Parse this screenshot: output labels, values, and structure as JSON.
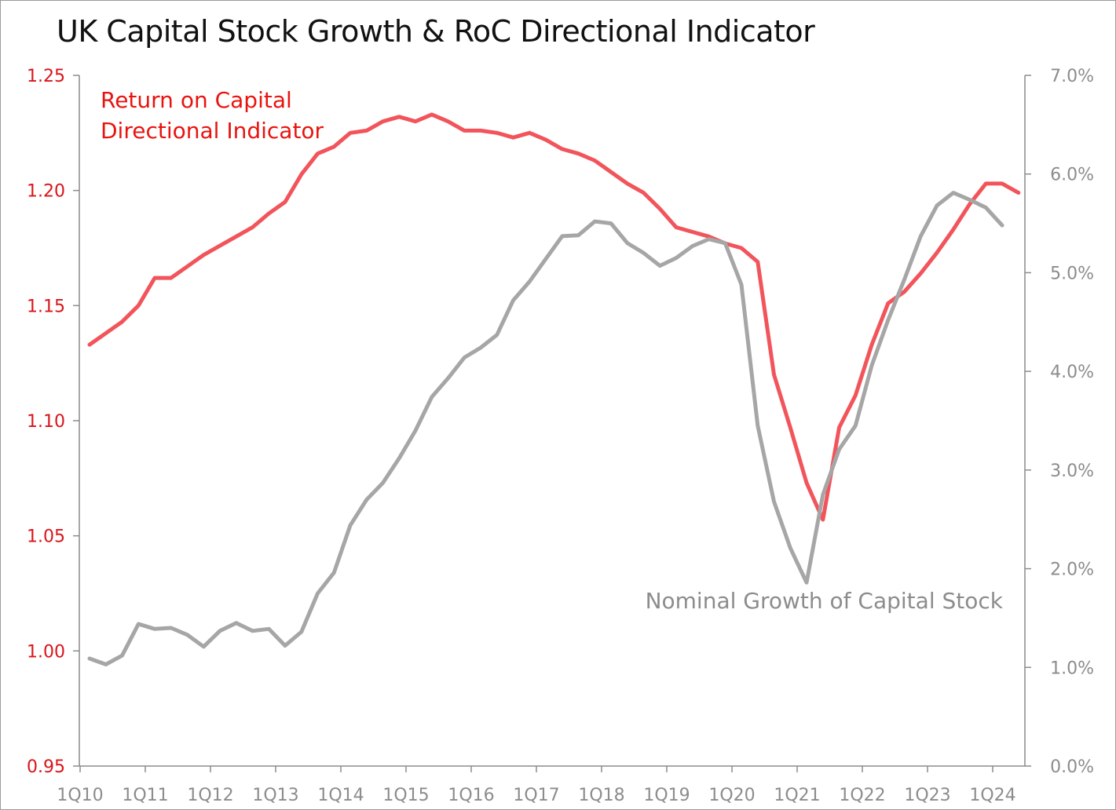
{
  "title": "UK Capital Stock Growth & RoC Directional Indicator",
  "chart_data": {
    "type": "line",
    "title": "UK Capital Stock Growth & RoC Directional Indicator",
    "x_ticks": [
      "1Q10",
      "1Q11",
      "1Q12",
      "1Q13",
      "1Q14",
      "1Q15",
      "1Q16",
      "1Q17",
      "1Q18",
      "1Q19",
      "1Q20",
      "1Q21",
      "1Q22",
      "1Q23",
      "1Q24"
    ],
    "x_start_year": 2010,
    "y_left": {
      "ylim": [
        0.95,
        1.25
      ],
      "ticks": [
        "0.95",
        "1.00",
        "1.05",
        "1.10",
        "1.15",
        "1.20",
        "1.25"
      ],
      "color": "#d9141a"
    },
    "y_right": {
      "ylim": [
        0.0,
        0.07
      ],
      "ticks": [
        "0.0%",
        "1.0%",
        "2.0%",
        "3.0%",
        "4.0%",
        "5.0%",
        "6.0%",
        "7.0%"
      ],
      "color": "#8c8c8c"
    },
    "series": [
      {
        "name": "Return on Capital Directional Indicator",
        "label_lines": [
          "Return on Capital",
          "Directional Indicator"
        ],
        "axis": "left",
        "color": "#f2545b",
        "values": [
          1.133,
          1.138,
          1.143,
          1.15,
          1.162,
          1.162,
          1.167,
          1.172,
          1.176,
          1.18,
          1.184,
          1.19,
          1.195,
          1.207,
          1.216,
          1.219,
          1.225,
          1.226,
          1.23,
          1.232,
          1.23,
          1.233,
          1.23,
          1.226,
          1.226,
          1.225,
          1.223,
          1.225,
          1.222,
          1.218,
          1.216,
          1.213,
          1.208,
          1.203,
          1.199,
          1.192,
          1.184,
          1.182,
          1.18,
          1.177,
          1.175,
          1.169,
          1.12,
          1.097,
          1.073,
          1.057,
          1.097,
          1.111,
          1.133,
          1.151,
          1.156,
          1.164,
          1.173,
          1.183,
          1.194,
          1.203,
          1.203,
          1.199
        ]
      },
      {
        "name": "Nominal Growth of Capital Stock",
        "label_lines": [
          "Nominal Growth of Capital Stock"
        ],
        "axis": "right",
        "color": "#a6a6a6",
        "values": [
          0.0109,
          0.0103,
          0.0112,
          0.0144,
          0.0139,
          0.014,
          0.0133,
          0.0121,
          0.0137,
          0.0145,
          0.0137,
          0.0139,
          0.0122,
          0.0136,
          0.0175,
          0.0196,
          0.0244,
          0.027,
          0.0287,
          0.0312,
          0.034,
          0.0374,
          0.0393,
          0.0414,
          0.0424,
          0.0437,
          0.0472,
          0.0491,
          0.0514,
          0.0537,
          0.0538,
          0.0552,
          0.055,
          0.053,
          0.052,
          0.0507,
          0.0515,
          0.0527,
          0.0534,
          0.053,
          0.0488,
          0.0345,
          0.0268,
          0.0221,
          0.0186,
          0.0275,
          0.0321,
          0.0345,
          0.0406,
          0.0452,
          0.0493,
          0.0537,
          0.0568,
          0.0581,
          0.0574,
          0.0566,
          0.0548
        ]
      }
    ]
  }
}
